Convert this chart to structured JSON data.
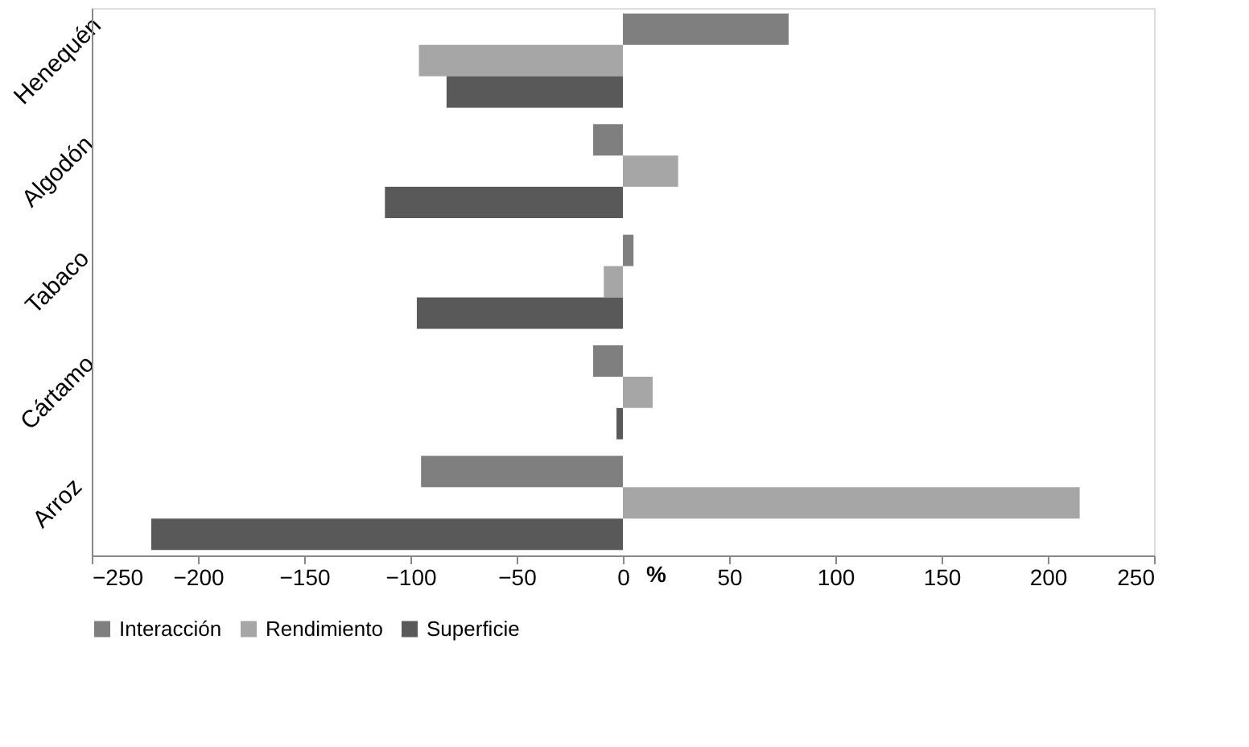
{
  "chart_data": {
    "type": "bar",
    "orientation": "horizontal",
    "xlabel": "%",
    "categories": [
      "Henequén",
      "Algodón",
      "Tabaco",
      "Cártamo",
      "Arroz"
    ],
    "series": [
      {
        "name": "Interacción",
        "color": "#7f7f7f",
        "values": [
          78,
          -14,
          5,
          -14,
          -95
        ]
      },
      {
        "name": "Rendimiento",
        "color": "#a6a6a6",
        "values": [
          -96,
          26,
          -9,
          14,
          215
        ]
      },
      {
        "name": "Superficie",
        "color": "#595959",
        "values": [
          -83,
          -112,
          -97,
          -3,
          -222
        ]
      }
    ],
    "xlim": [
      -250,
      250
    ],
    "xticks": [
      -250,
      -200,
      -150,
      -100,
      -50,
      0,
      50,
      100,
      150,
      200,
      250
    ],
    "grid": false,
    "legend": "bottom"
  }
}
